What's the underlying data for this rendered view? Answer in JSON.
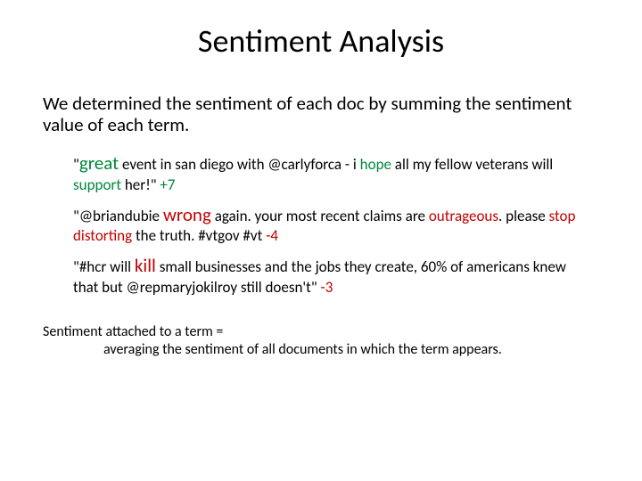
{
  "title": "Sentiment Analysis",
  "intro": "We determined the sentiment of each doc by summing the sentiment value of each term.",
  "examples": {
    "e1": {
      "q1": "\"",
      "great": "great",
      "t1": " event in san diego with @carlyforca - i ",
      "hope": "hope",
      "t2": " all my fellow veterans will ",
      "support": "support",
      "t3": " her!\" ",
      "score": "+7"
    },
    "e2": {
      "t1": "\"@briandubie ",
      "wrong": "wrong",
      "t2": " again. your most recent claims are ",
      "outrageous": "outrageous",
      "t3": ". please ",
      "stop": "stop",
      "sp": " ",
      "distorting": "distorting",
      "t4": " the truth. #vtgov #vt ",
      "score": "-4"
    },
    "e3": {
      "t1": "\"#hcr will ",
      "kill": "kill",
      "t2": " small businesses and the jobs they create, 60% of americans knew that but @repmaryjokilroy still doesn't\" ",
      "score": "-3"
    }
  },
  "note": {
    "line1": "Sentiment attached to a term =",
    "line2": "averaging the sentiment of all documents in which the term appears."
  },
  "colors": {
    "green": "#00863d",
    "red": "#c00000",
    "text": "#000000",
    "background": "#ffffff"
  },
  "typography": {
    "title_fontsize": 36,
    "intro_fontsize": 21,
    "example_fontsize": 17,
    "emphasis_fontsize": 21,
    "note_fontsize": 16,
    "font_family": "Calibri"
  }
}
